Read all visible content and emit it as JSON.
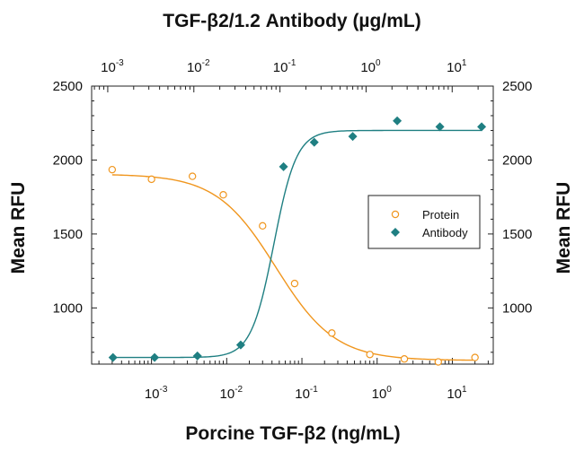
{
  "chart_data": {
    "type": "scatter",
    "title": "TGF-β2/1.2 Antibody (µg/mL)",
    "xlabel": "Porcine TGF-β2 (ng/mL)",
    "x2label": "TGF-β2/1.2 Antibody (µg/mL)",
    "ylabel": "Mean RFU",
    "y2label": "Mean RFU",
    "x_scale": "log",
    "xlim": [
      0.00016,
      35
    ],
    "x2lim": [
      0.00065,
      30
    ],
    "ylim": [
      620,
      2500
    ],
    "y_ticks": [
      {
        "value": 1000,
        "label": "1000"
      },
      {
        "value": 1500,
        "label": "1500"
      },
      {
        "value": 2000,
        "label": "2000"
      },
      {
        "value": 2500,
        "label": "2500"
      }
    ],
    "x_ticks": [
      {
        "value": 0.001,
        "base": "10",
        "exp": "-3"
      },
      {
        "value": 0.01,
        "base": "10",
        "exp": "-2"
      },
      {
        "value": 0.1,
        "base": "10",
        "exp": "-1"
      },
      {
        "value": 1,
        "base": "10",
        "exp": "0"
      },
      {
        "value": 10,
        "base": "10",
        "exp": "1"
      }
    ],
    "x2_ticks": [
      {
        "value": 0.001,
        "base": "10",
        "exp": "-3"
      },
      {
        "value": 0.01,
        "base": "10",
        "exp": "-2"
      },
      {
        "value": 0.1,
        "base": "10",
        "exp": "-1"
      },
      {
        "value": 1,
        "base": "10",
        "exp": "0"
      },
      {
        "value": 10,
        "base": "10",
        "exp": "1"
      }
    ],
    "legend_position": "right-middle",
    "grid": false,
    "series": [
      {
        "name": "Protein",
        "axis": "bottom",
        "marker": "open-circle",
        "color": "#f0961e",
        "points": [
          {
            "x": 0.0003,
            "y": 1935
          },
          {
            "x": 0.001,
            "y": 1870
          },
          {
            "x": 0.0035,
            "y": 1890
          },
          {
            "x": 0.009,
            "y": 1765
          },
          {
            "x": 0.03,
            "y": 1555
          },
          {
            "x": 0.08,
            "y": 1165
          },
          {
            "x": 0.25,
            "y": 830
          },
          {
            "x": 0.8,
            "y": 685
          },
          {
            "x": 2.3,
            "y": 655
          },
          {
            "x": 6.5,
            "y": 635
          },
          {
            "x": 20,
            "y": 665
          }
        ],
        "curve": {
          "bottom": 645,
          "top": 1905,
          "ec50": 0.045,
          "hill": -1.1
        }
      },
      {
        "name": "Antibody",
        "axis": "top",
        "marker": "diamond",
        "color": "#1f7f82",
        "points": [
          {
            "x": 0.00115,
            "y": 665
          },
          {
            "x": 0.0035,
            "y": 665
          },
          {
            "x": 0.011,
            "y": 675
          },
          {
            "x": 0.035,
            "y": 750
          },
          {
            "x": 0.11,
            "y": 1955
          },
          {
            "x": 0.25,
            "y": 2120
          },
          {
            "x": 0.7,
            "y": 2160
          },
          {
            "x": 2.3,
            "y": 2265
          },
          {
            "x": 7.2,
            "y": 2225
          },
          {
            "x": 22,
            "y": 2225
          }
        ],
        "curve": {
          "bottom": 665,
          "top": 2200,
          "ec50": 0.085,
          "hill": 3.3
        }
      }
    ]
  }
}
